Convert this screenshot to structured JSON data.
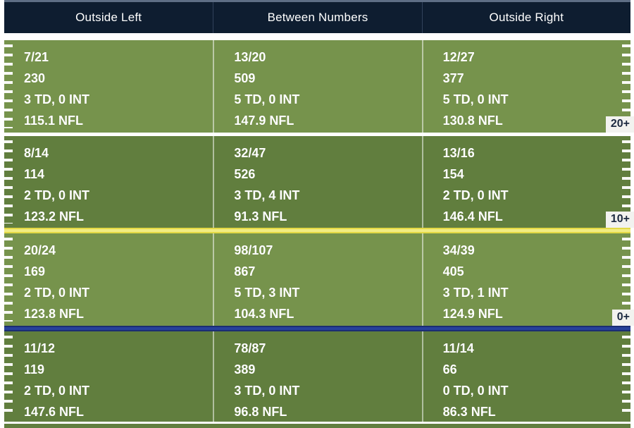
{
  "chart_data": {
    "type": "table",
    "description": "Passing stats by field location zone",
    "columns": [
      "Outside Left",
      "Between Numbers",
      "Outside Right"
    ],
    "rows": [
      {
        "label": "20+",
        "cells": [
          {
            "comp_att": "7/21",
            "yards": "230",
            "td_int": "3 TD, 0 INT",
            "rating": "115.1 NFL"
          },
          {
            "comp_att": "13/20",
            "yards": "509",
            "td_int": "5 TD, 0 INT",
            "rating": "147.9 NFL"
          },
          {
            "comp_att": "12/27",
            "yards": "377",
            "td_int": "5 TD, 0 INT",
            "rating": "130.8 NFL"
          }
        ]
      },
      {
        "label": "10+",
        "cells": [
          {
            "comp_att": "8/14",
            "yards": "114",
            "td_int": "2 TD, 0 INT",
            "rating": "123.2 NFL"
          },
          {
            "comp_att": "32/47",
            "yards": "526",
            "td_int": "3 TD, 4 INT",
            "rating": "91.3 NFL"
          },
          {
            "comp_att": "13/16",
            "yards": "154",
            "td_int": "2 TD, 0 INT",
            "rating": "146.4 NFL"
          }
        ]
      },
      {
        "label": "0+",
        "cells": [
          {
            "comp_att": "20/24",
            "yards": "169",
            "td_int": "2 TD, 0 INT",
            "rating": "123.8 NFL"
          },
          {
            "comp_att": "98/107",
            "yards": "867",
            "td_int": "5 TD, 3 INT",
            "rating": "104.3 NFL"
          },
          {
            "comp_att": "34/39",
            "yards": "405",
            "td_int": "3 TD, 1 INT",
            "rating": "124.9 NFL"
          }
        ]
      },
      {
        "label": "",
        "cells": [
          {
            "comp_att": "11/12",
            "yards": "119",
            "td_int": "2 TD, 0 INT",
            "rating": "147.6 NFL"
          },
          {
            "comp_att": "78/87",
            "yards": "389",
            "td_int": "3 TD, 0 INT",
            "rating": "96.8 NFL"
          },
          {
            "comp_att": "11/14",
            "yards": "66",
            "td_int": "0 TD, 0 INT",
            "rating": "86.3 NFL"
          }
        ]
      }
    ]
  },
  "colors": {
    "header_bg": "#0e1d30",
    "field_light": "#76934c",
    "field_dark": "#617e3e",
    "yellow_line": "#e3d945",
    "blue_line": "#27409b",
    "label_bg": "#f2f2ef",
    "label_text": "#1c2940",
    "hash_mark": "#ffffff"
  }
}
